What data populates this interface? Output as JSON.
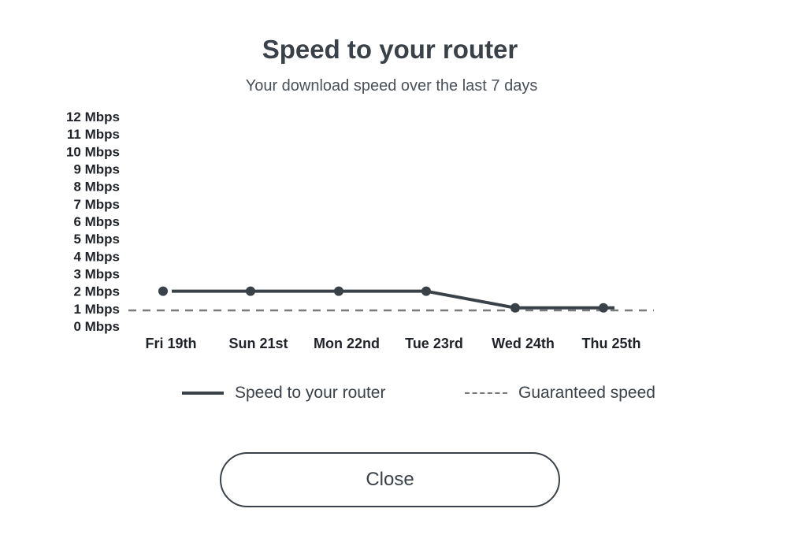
{
  "dialog": {
    "title": "Speed to your router",
    "subtitle": "Your download speed over the last 7 days",
    "close_label": "Close"
  },
  "colors": {
    "series": "#3a4148",
    "guaranteed": "#7a7a7a"
  },
  "chart_data": {
    "type": "line",
    "categories": [
      "Fri 19th",
      "Sun 21st",
      "Mon 22nd",
      "Tue 23rd",
      "Wed 24th",
      "Thu 25th"
    ],
    "y_ticks": [
      "0 Mbps",
      "1 Mbps",
      "2 Mbps",
      "3 Mbps",
      "4 Mbps",
      "5 Mbps",
      "6 Mbps",
      "7 Mbps",
      "8 Mbps",
      "9 Mbps",
      "10 Mbps",
      "11 Mbps",
      "12 Mbps"
    ],
    "ylim": [
      0,
      12
    ],
    "grid": false,
    "legend_position": "bottom",
    "series": [
      {
        "name": "Speed to your router",
        "values": [
          2,
          2,
          2,
          2,
          1.05,
          1.05
        ],
        "style": "solid"
      },
      {
        "name": "Guaranteed speed",
        "value": 0.9,
        "style": "dashed"
      }
    ]
  }
}
